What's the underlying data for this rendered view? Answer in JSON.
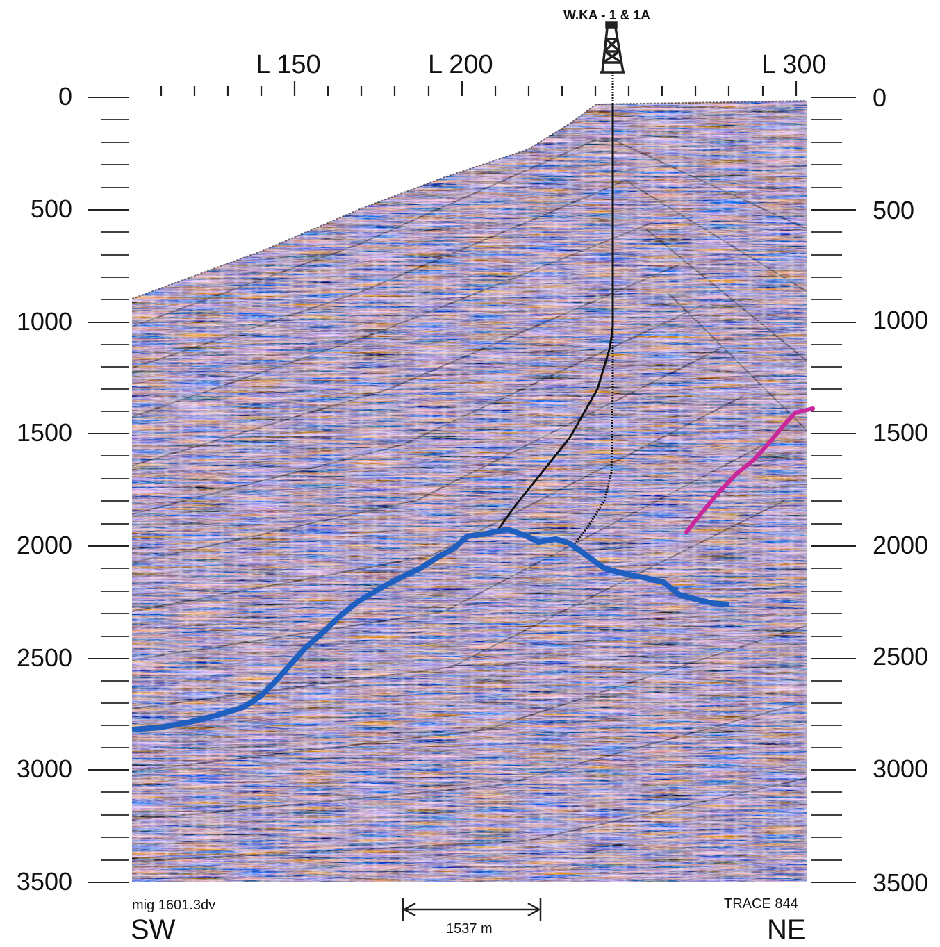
{
  "well": {
    "name": "W.KA - 1 & 1A",
    "icon": "derrick-icon"
  },
  "line_labels": [
    "L 150",
    "L 200",
    "L 300"
  ],
  "depth_labels": [
    "0",
    "500",
    "1000",
    "1500",
    "2000",
    "2500",
    "3000",
    "3500"
  ],
  "footer": {
    "left_code": "mig 1601.3dv",
    "left_direction": "SW",
    "scale_bar": "1537 m",
    "right_code": "TRACE 844",
    "right_direction": "NE"
  },
  "colors": {
    "horizon_blue": "#1f5fbf",
    "horizon_magenta": "#c8289a",
    "seismic_red": "#8a3a2a",
    "seismic_blue": "#3a4a8a",
    "seismic_dark": "#1e1a24"
  }
}
